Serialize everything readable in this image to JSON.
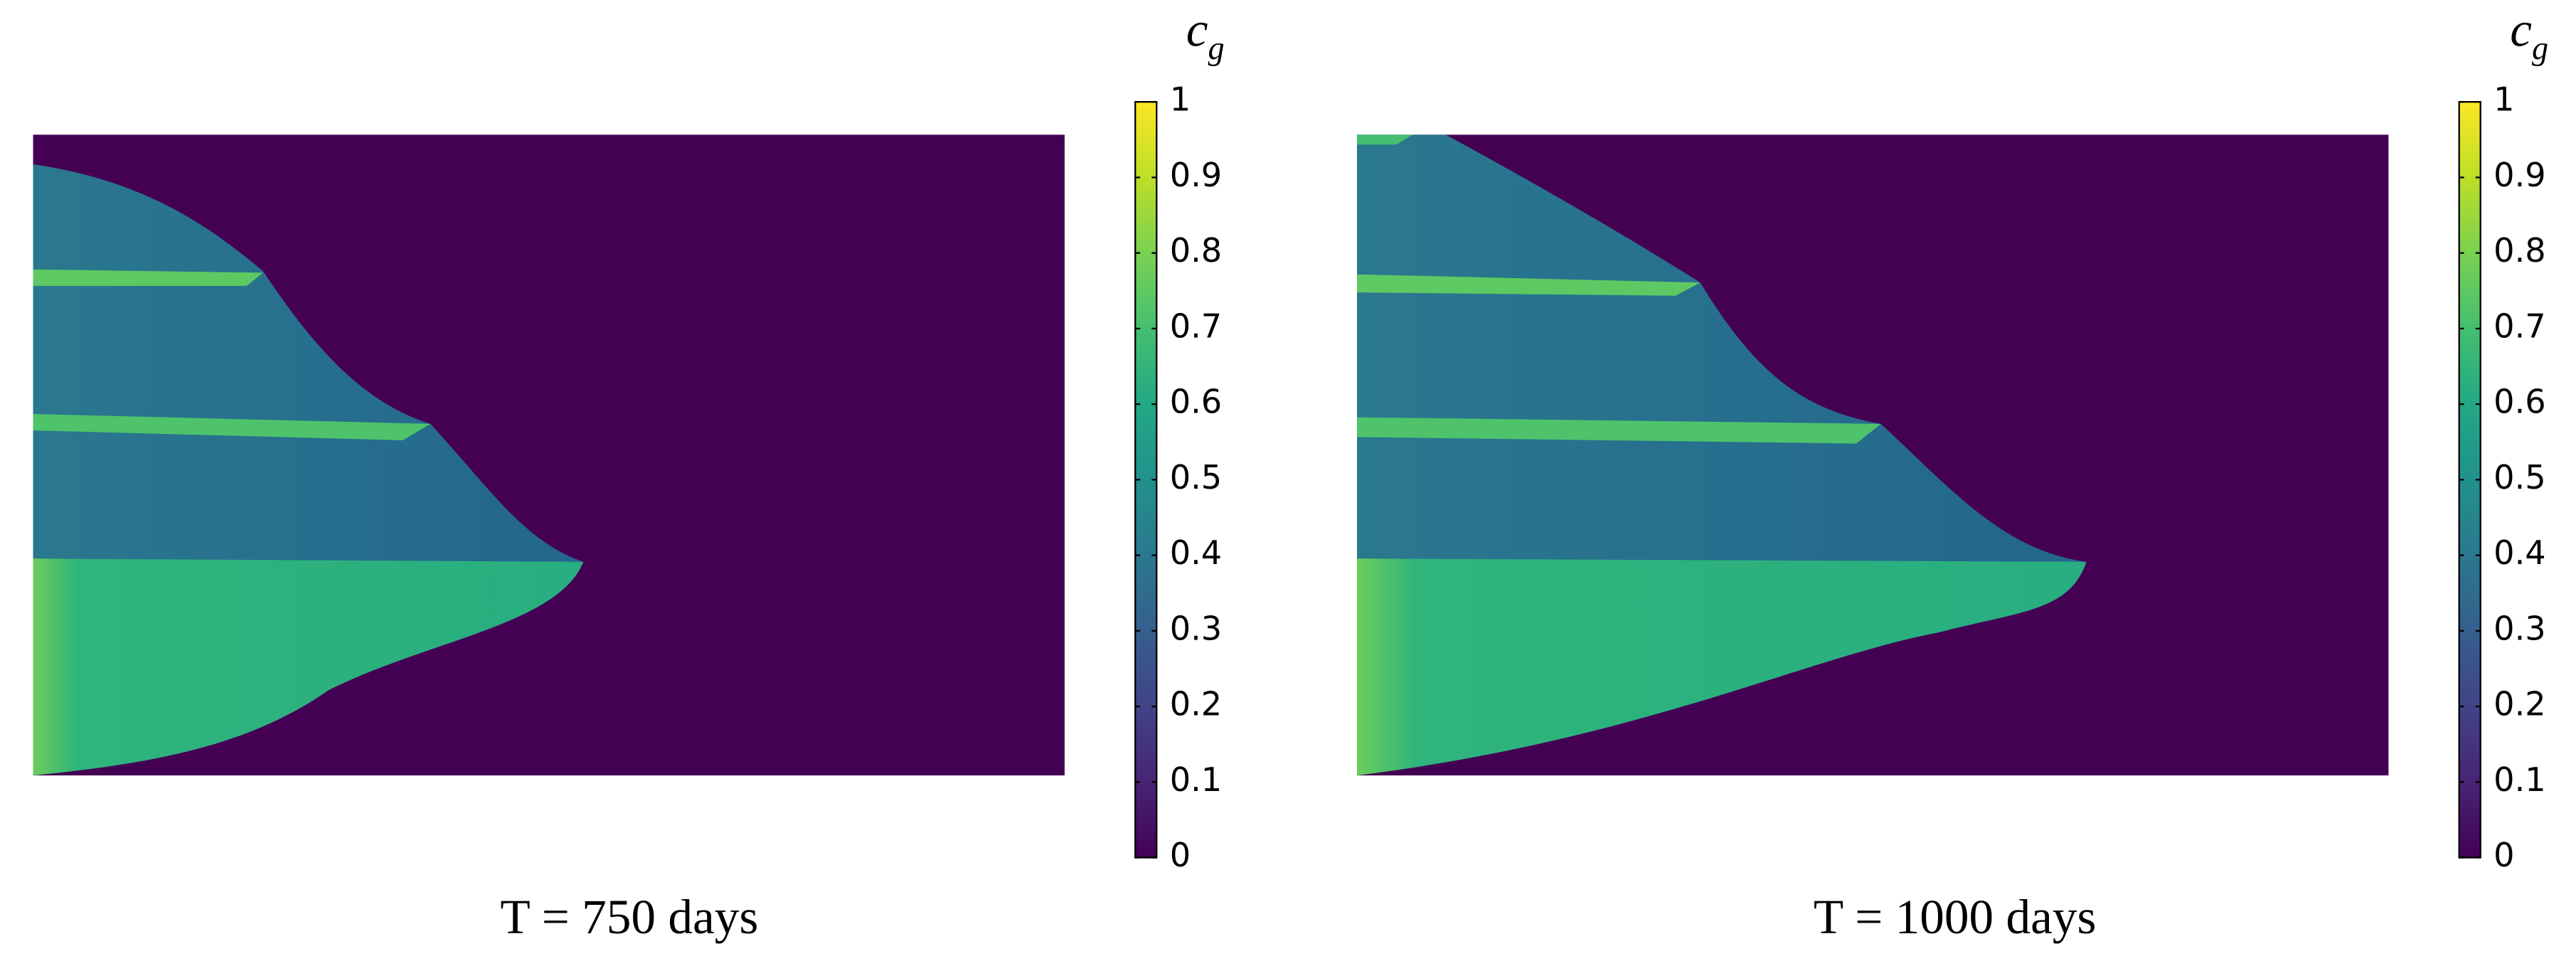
{
  "chart_data": [
    {
      "type": "field",
      "caption": "T = 750 days",
      "colorbar_label": {
        "base": "c",
        "sub": "g"
      },
      "clim": [
        0,
        1
      ],
      "cticks": [
        0,
        0.1,
        0.2,
        0.3,
        0.4,
        0.5,
        0.6,
        0.7,
        0.8,
        0.9,
        1
      ],
      "colormap": "viridis"
    },
    {
      "type": "field",
      "caption": "T = 1000 days",
      "colorbar_label": {
        "base": "c",
        "sub": "g"
      },
      "clim": [
        0,
        1
      ],
      "cticks": [
        0,
        0.1,
        0.2,
        0.3,
        0.4,
        0.5,
        0.6,
        0.7,
        0.8,
        0.9,
        1
      ],
      "colormap": "viridis"
    }
  ]
}
